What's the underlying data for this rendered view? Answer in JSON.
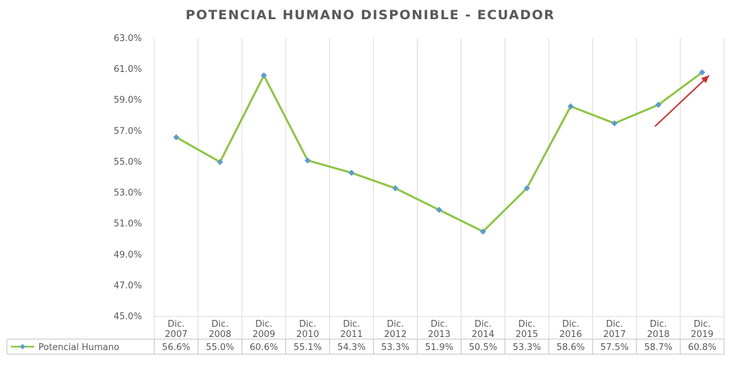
{
  "chart_data": {
    "type": "line",
    "title": "POTENCIAL HUMANO DISPONIBLE - ECUADOR",
    "categories": [
      [
        "Dic.",
        "2007"
      ],
      [
        "Dic.",
        "2008"
      ],
      [
        "Dic.",
        "2009"
      ],
      [
        "Dic.",
        "2010"
      ],
      [
        "Dic.",
        "2011"
      ],
      [
        "Dic.",
        "2012"
      ],
      [
        "Dic.",
        "2013"
      ],
      [
        "Dic.",
        "2014"
      ],
      [
        "Dic.",
        "2015"
      ],
      [
        "Dic.",
        "2016"
      ],
      [
        "Dic.",
        "2017"
      ],
      [
        "Dic.",
        "2018"
      ],
      [
        "Dic.",
        "2019"
      ]
    ],
    "series": [
      {
        "name": "Potencial Humano",
        "values": [
          56.6,
          55.0,
          60.6,
          55.1,
          54.3,
          53.3,
          51.9,
          50.5,
          53.3,
          58.6,
          57.5,
          58.7,
          60.8
        ],
        "value_labels": [
          "56.6%",
          "55.0%",
          "60.6%",
          "55.1%",
          "54.3%",
          "53.3%",
          "51.9%",
          "50.5%",
          "53.3%",
          "58.6%",
          "57.5%",
          "58.7%",
          "60.8%"
        ],
        "line_color": "#8cc63f",
        "marker_color": "#5b9bd5"
      }
    ],
    "ylim": [
      45,
      63
    ],
    "ytick_values": [
      45,
      47,
      49,
      51,
      53,
      55,
      57,
      59,
      61,
      63
    ],
    "ytick_labels": [
      "45.0%",
      "47.0%",
      "49.0%",
      "51.0%",
      "53.0%",
      "55.0%",
      "57.0%",
      "59.0%",
      "61.0%",
      "63.0%"
    ],
    "grid": {
      "vertical": true,
      "horizontal": false
    },
    "legend": "data-table-left",
    "annotation": {
      "type": "arrow",
      "color": "#d62728",
      "from": {
        "x": "Dic. 2018",
        "y": 57.3
      },
      "to": {
        "x": "Dic. 2019",
        "y": 60.6
      }
    },
    "colors": {
      "title": "#595959",
      "axis_text": "#595959",
      "grid": "#d9d9d9",
      "table_border": "#bfbfbf"
    }
  }
}
